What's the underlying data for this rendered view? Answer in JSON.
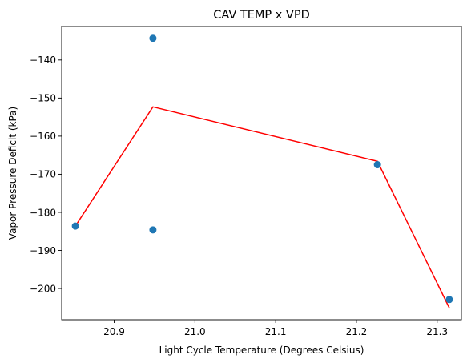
{
  "chart_data": {
    "type": "scatter",
    "title": "CAV TEMP x VPD",
    "xlabel": "Light Cycle Temperature (Degrees Celsius)",
    "ylabel": "Vapor Pressure Deficit (kPa)",
    "xlim": [
      20.835,
      21.33
    ],
    "ylim": [
      -208.2,
      -131.2
    ],
    "xticks": [
      20.9,
      21.0,
      21.1,
      21.2,
      21.3
    ],
    "xtick_labels": [
      "20.9",
      "21.0",
      "21.1",
      "21.2",
      "21.3"
    ],
    "yticks": [
      -140,
      -150,
      -160,
      -170,
      -180,
      -190,
      -200
    ],
    "ytick_labels": [
      "−140",
      "−150",
      "−160",
      "−170",
      "−180",
      "−190",
      "−200"
    ],
    "grid": false,
    "series": [
      {
        "kind": "scatter",
        "color": "#1f77b4",
        "points": [
          {
            "x": 20.852,
            "y": -183.6
          },
          {
            "x": 20.948,
            "y": -134.3
          },
          {
            "x": 20.948,
            "y": -184.6
          },
          {
            "x": 21.226,
            "y": -167.5
          },
          {
            "x": 21.315,
            "y": -202.9
          }
        ]
      },
      {
        "kind": "line",
        "color": "#ff0000",
        "points": [
          {
            "x": 20.852,
            "y": -183.6
          },
          {
            "x": 20.948,
            "y": -152.3
          },
          {
            "x": 21.226,
            "y": -166.6
          },
          {
            "x": 21.315,
            "y": -205.1
          }
        ]
      }
    ]
  }
}
